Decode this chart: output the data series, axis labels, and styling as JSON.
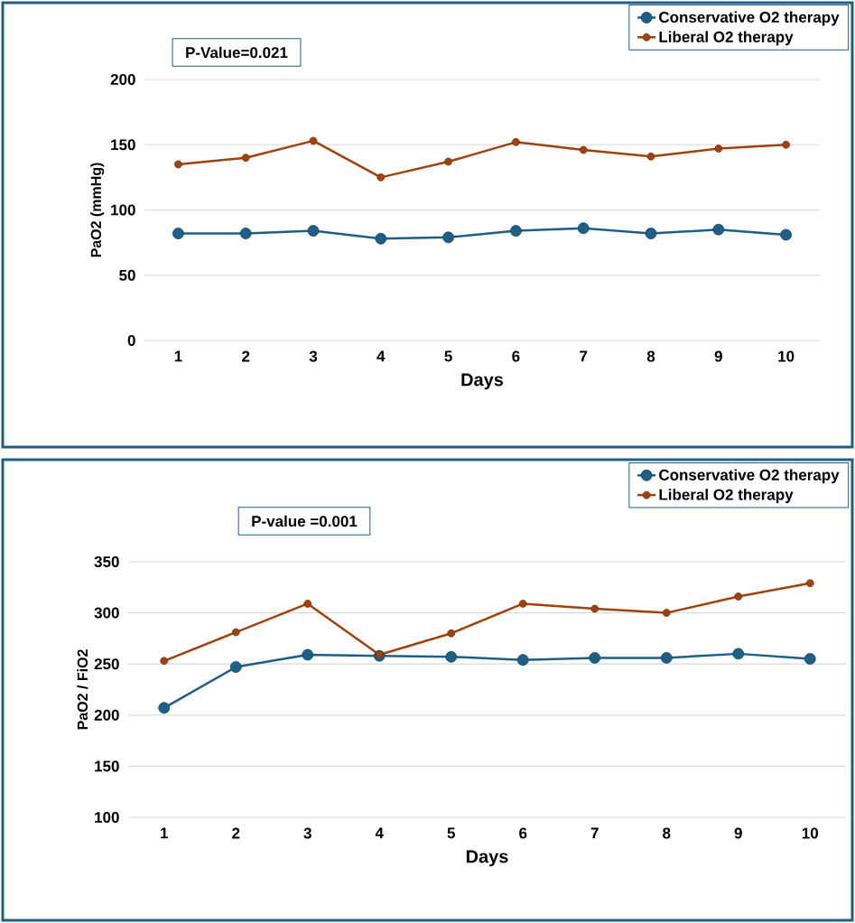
{
  "chart_data": [
    {
      "type": "line",
      "categories": [
        "1",
        "2",
        "3",
        "4",
        "5",
        "6",
        "7",
        "8",
        "9",
        "10"
      ],
      "xlabel": "Days",
      "ylabel": "PaO2 (mmHg)",
      "ylim": [
        0,
        200
      ],
      "yticks": [
        0,
        50,
        100,
        150,
        200
      ],
      "grid": "y",
      "legend": "top right",
      "marker": "circle",
      "line_style": "solid",
      "annotations": [
        "P-Value=0.021"
      ],
      "series": [
        {
          "name": "Conservative O2 therapy",
          "color": "#1f5f86",
          "values": [
            82,
            82,
            84,
            78,
            79,
            84,
            86,
            82,
            85,
            81
          ]
        },
        {
          "name": "Liberal O2 therapy",
          "color": "#a0420e",
          "values": [
            135,
            140,
            153,
            125,
            137,
            152,
            146,
            141,
            147,
            150
          ]
        }
      ]
    },
    {
      "type": "line",
      "categories": [
        "1",
        "2",
        "3",
        "4",
        "5",
        "6",
        "7",
        "8",
        "9",
        "10"
      ],
      "xlabel": "Days",
      "ylabel": "PaO2 / FiO2",
      "ylim": [
        100,
        350
      ],
      "yticks": [
        100,
        150,
        200,
        250,
        300,
        350
      ],
      "grid": "y",
      "legend": "top right",
      "marker": "circle",
      "line_style": "solid",
      "annotations": [
        "P-value =0.001"
      ],
      "series": [
        {
          "name": "Conservative O2 therapy",
          "color": "#1f5f86",
          "values": [
            207,
            247,
            259,
            258,
            257,
            254,
            256,
            256,
            260,
            255
          ]
        },
        {
          "name": "Liberal O2 therapy",
          "color": "#a0420e",
          "values": [
            253,
            281,
            309,
            259,
            280,
            309,
            304,
            300,
            316,
            329
          ]
        }
      ]
    }
  ]
}
